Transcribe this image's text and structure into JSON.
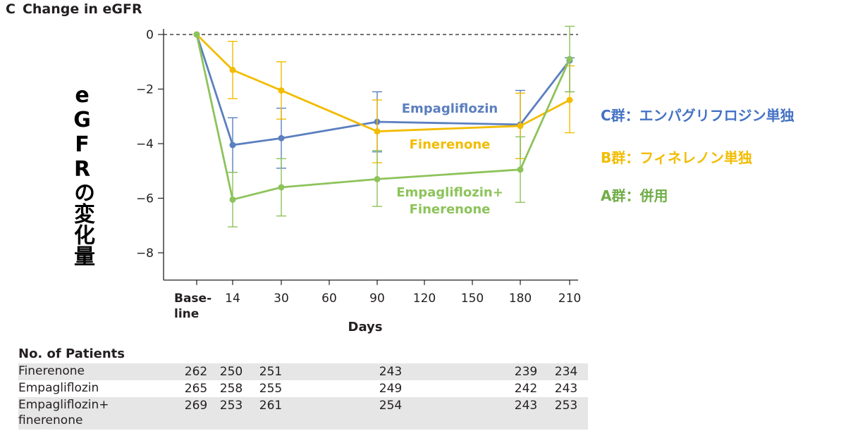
{
  "panel": {
    "letter": "C",
    "title": "Change in eGFR"
  },
  "y_axis_japanese_label": "eGFRの変化量",
  "japanese_legend": [
    {
      "text": "C群：エンパグリフロジン単独",
      "color": "#4472c4"
    },
    {
      "text": "B群：フィネレノン単独",
      "color": "#f2bc00"
    },
    {
      "text": "A群：併用",
      "color": "#70ad47"
    }
  ],
  "chart_data": {
    "type": "line",
    "title": "Change in eGFR",
    "xlabel": "Days",
    "ylabel": "",
    "x_tick_labels": [
      "Base-\nline",
      "14",
      "30",
      "60",
      "90",
      "120",
      "150",
      "180",
      "210"
    ],
    "ylim": [
      -9,
      0
    ],
    "y_ticks": [
      0,
      -2,
      -4,
      -6,
      -8
    ],
    "y_tick_labels": [
      "0",
      "−2",
      "−4",
      "−6",
      "−8"
    ],
    "reference_line": 0,
    "series": [
      {
        "name": "Empagliflozin",
        "color": "#5b7fbf",
        "x": [
          "Baseline",
          "14",
          "30",
          "90",
          "180",
          "210"
        ],
        "y": [
          0,
          -4.05,
          -3.8,
          -3.2,
          -3.3,
          -0.95
        ],
        "error_low": [
          0,
          -5.05,
          -4.9,
          -4.3,
          -4.55,
          -2.1
        ],
        "error_high": [
          0,
          -3.05,
          -2.7,
          -2.1,
          -2.05,
          -0.85
        ]
      },
      {
        "name": "Finerenone",
        "color": "#f2bc00",
        "x": [
          "Baseline",
          "14",
          "30",
          "90",
          "180",
          "210"
        ],
        "y": [
          0,
          -1.3,
          -2.05,
          -3.55,
          -3.35,
          -2.4
        ],
        "error_low": [
          0,
          -2.35,
          -3.1,
          -4.7,
          -4.55,
          -3.6
        ],
        "error_high": [
          0,
          -0.25,
          -1.0,
          -2.4,
          -2.15,
          -1.15
        ]
      },
      {
        "name": "Empagliflozin+\nFinerenone",
        "color": "#8dc35b",
        "x": [
          "Baseline",
          "14",
          "30",
          "90",
          "180",
          "210"
        ],
        "y": [
          0,
          -6.05,
          -5.6,
          -5.3,
          -4.95,
          -0.9
        ],
        "error_low": [
          0,
          -7.05,
          -6.65,
          -6.3,
          -6.15,
          -2.1
        ],
        "error_high": [
          0,
          -5.05,
          -4.55,
          -4.25,
          -3.75,
          0.3
        ]
      }
    ]
  },
  "patients_table": {
    "title": "No. of Patients",
    "rows": [
      {
        "name": "Finerenone",
        "counts": [
          "262",
          "250",
          "251",
          "243",
          "239",
          "234"
        ]
      },
      {
        "name": "Empagliflozin",
        "counts": [
          "265",
          "258",
          "255",
          "249",
          "242",
          "243"
        ]
      },
      {
        "name": "Empagliflozin+\n finerenone",
        "counts": [
          "269",
          "253",
          "261",
          "254",
          "243",
          "253"
        ]
      }
    ]
  }
}
